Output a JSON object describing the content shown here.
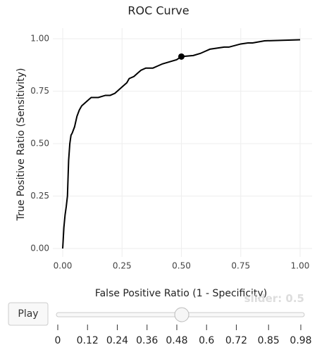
{
  "chart_data": {
    "type": "line",
    "title": "ROC Curve",
    "x_label": "False Positive Ratio (1 - Specificity)",
    "y_label": "True Positive Ratio (Sensitivity)",
    "x": [
      0,
      0.005,
      0.01,
      0.015,
      0.02,
      0.025,
      0.03,
      0.035,
      0.04,
      0.05,
      0.06,
      0.07,
      0.08,
      0.09,
      0.1,
      0.12,
      0.15,
      0.18,
      0.2,
      0.22,
      0.24,
      0.25,
      0.27,
      0.28,
      0.3,
      0.32,
      0.33,
      0.35,
      0.38,
      0.4,
      0.42,
      0.45,
      0.48,
      0.5,
      0.55,
      0.58,
      0.6,
      0.62,
      0.65,
      0.68,
      0.7,
      0.75,
      0.78,
      0.8,
      0.85,
      1.0
    ],
    "series": [
      {
        "name": "ROC",
        "color": "#000000",
        "values": [
          0,
          0.1,
          0.16,
          0.2,
          0.25,
          0.42,
          0.5,
          0.54,
          0.55,
          0.58,
          0.63,
          0.66,
          0.68,
          0.69,
          0.7,
          0.72,
          0.72,
          0.73,
          0.73,
          0.74,
          0.76,
          0.77,
          0.79,
          0.81,
          0.82,
          0.84,
          0.85,
          0.86,
          0.86,
          0.87,
          0.88,
          0.89,
          0.9,
          0.915,
          0.92,
          0.93,
          0.94,
          0.95,
          0.955,
          0.96,
          0.96,
          0.975,
          0.98,
          0.98,
          0.99,
          0.995
        ]
      }
    ],
    "marker": {
      "x": 0.5,
      "y": 0.915,
      "color": "#000000"
    },
    "xlim": [
      0,
      1
    ],
    "ylim": [
      0,
      1
    ],
    "xticks": [
      {
        "value": 0,
        "label": "0.00"
      },
      {
        "value": 0.25,
        "label": "0.25"
      },
      {
        "value": 0.5,
        "label": "0.50"
      },
      {
        "value": 0.75,
        "label": "0.75"
      },
      {
        "value": 1,
        "label": "1.00"
      }
    ],
    "yticks": [
      {
        "value": 0,
        "label": "0.00"
      },
      {
        "value": 0.25,
        "label": "0.25"
      },
      {
        "value": 0.5,
        "label": "0.50"
      },
      {
        "value": 0.75,
        "label": "0.75"
      },
      {
        "value": 1,
        "label": "1.00"
      }
    ],
    "grid": true,
    "slider": {
      "prefix": "slider: ",
      "value": 0.5,
      "button": "Play",
      "range": [
        0,
        0.98
      ],
      "ticks": [
        0,
        0.12,
        0.24,
        0.36,
        0.48,
        0.6,
        0.72,
        0.85,
        0.98
      ]
    }
  }
}
